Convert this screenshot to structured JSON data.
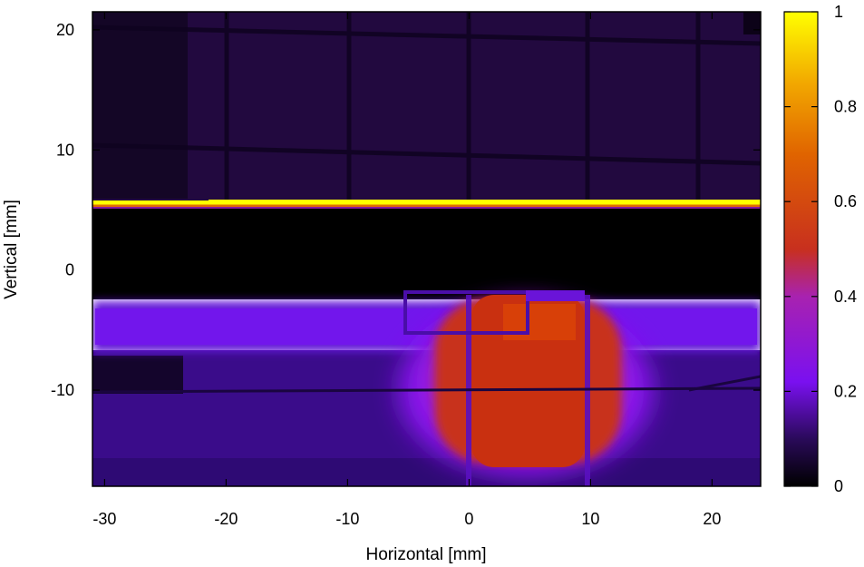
{
  "chart_data": {
    "type": "heatmap",
    "xlabel": "Horizontal [mm]",
    "ylabel": "Vertical [mm]",
    "xlim": [
      -31,
      24
    ],
    "ylim": [
      -18,
      21.5
    ],
    "x_ticks": [
      -30,
      -20,
      -10,
      0,
      10,
      20
    ],
    "x_tick_labels": [
      "-30",
      "-20",
      "-10",
      "0",
      "10",
      "20"
    ],
    "y_ticks": [
      -10,
      0,
      10,
      20
    ],
    "y_tick_labels": [
      "-10",
      "0",
      "10",
      "20"
    ],
    "colorbar": {
      "range": [
        0,
        1
      ],
      "ticks": [
        0,
        0.2,
        0.4,
        0.6,
        0.8,
        1
      ],
      "tick_labels": [
        "0",
        "0.2",
        "0.4",
        "0.6",
        "0.8",
        "1"
      ],
      "colormap": [
        "#000000",
        "#2a0a5a",
        "#7a10f0",
        "#c23a80",
        "#e05a00",
        "#f29e00",
        "#ffff00"
      ]
    },
    "grid": false,
    "regions": [
      {
        "name": "upper grid area",
        "x": [
          -31,
          24
        ],
        "y": [
          6,
          21.5
        ],
        "value": 0.08
      },
      {
        "name": "bright horizontal edge",
        "x": [
          -31,
          24
        ],
        "y": [
          5.5,
          6
        ],
        "value": 1.0
      },
      {
        "name": "dark band",
        "x": [
          -31,
          24
        ],
        "y": [
          -2.5,
          5.5
        ],
        "value": 0.0
      },
      {
        "name": "horizontal beam band",
        "x": [
          -31,
          24
        ],
        "y": [
          -6.5,
          -2.5
        ],
        "value": 0.22
      },
      {
        "name": "lower background",
        "x": [
          -31,
          24
        ],
        "y": [
          -18,
          -6.5
        ],
        "value": 0.13
      },
      {
        "name": "central spot",
        "x": [
          -2.5,
          12
        ],
        "y": [
          -16.5,
          -2
        ],
        "value": 0.52
      }
    ]
  }
}
